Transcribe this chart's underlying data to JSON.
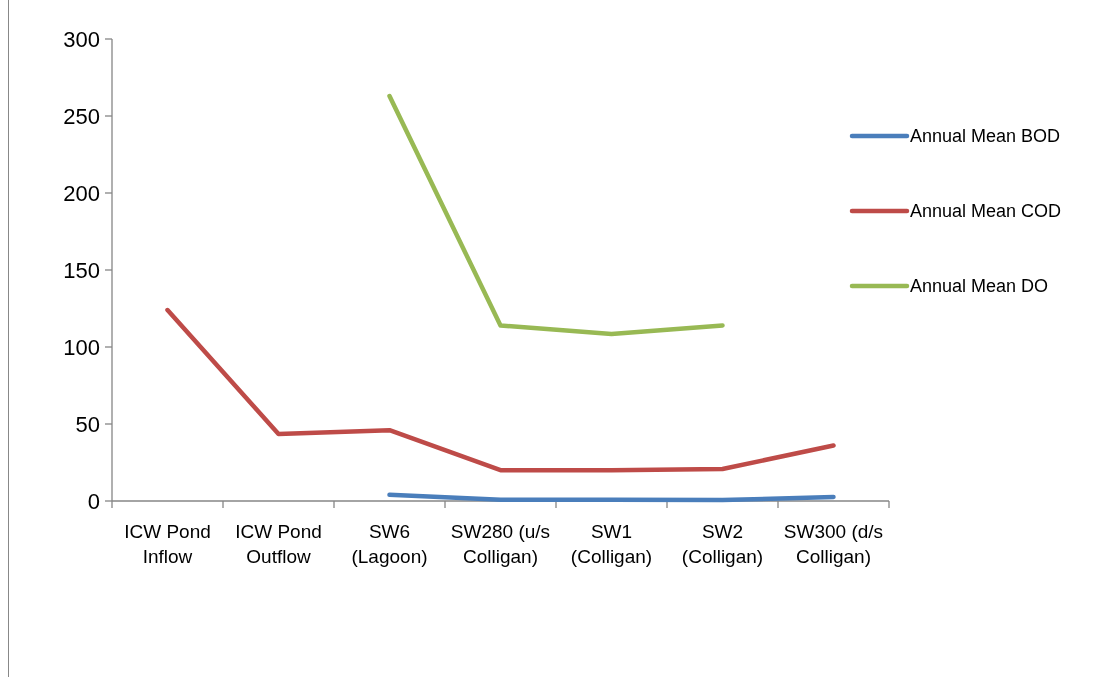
{
  "chart_data": {
    "type": "line",
    "categories": [
      "ICW Pond Inflow",
      "ICW Pond Outflow",
      "SW6 (Lagoon)",
      "SW280 (u/s Colligan)",
      "SW1 (Colligan)",
      "SW2 (Colligan)",
      "SW300 (d/s Colligan)"
    ],
    "series": [
      {
        "name": "Annual Mean BOD",
        "color": "#4a7ebb",
        "values": [
          null,
          null,
          4,
          0.8,
          0.8,
          0.6,
          2.6
        ]
      },
      {
        "name": "Annual Mean COD",
        "color": "#be4b48",
        "values": [
          124,
          43.5,
          46,
          20,
          20,
          20.8,
          36
        ]
      },
      {
        "name": "Annual Mean DO",
        "color": "#98b954",
        "values": [
          null,
          null,
          263,
          114,
          108.5,
          114,
          null
        ]
      }
    ],
    "ylim": [
      0,
      300
    ],
    "yticks": [
      0,
      50,
      100,
      150,
      200,
      250,
      300
    ],
    "grid": false,
    "legend": "right",
    "marker": "none",
    "line_style": "solid"
  }
}
